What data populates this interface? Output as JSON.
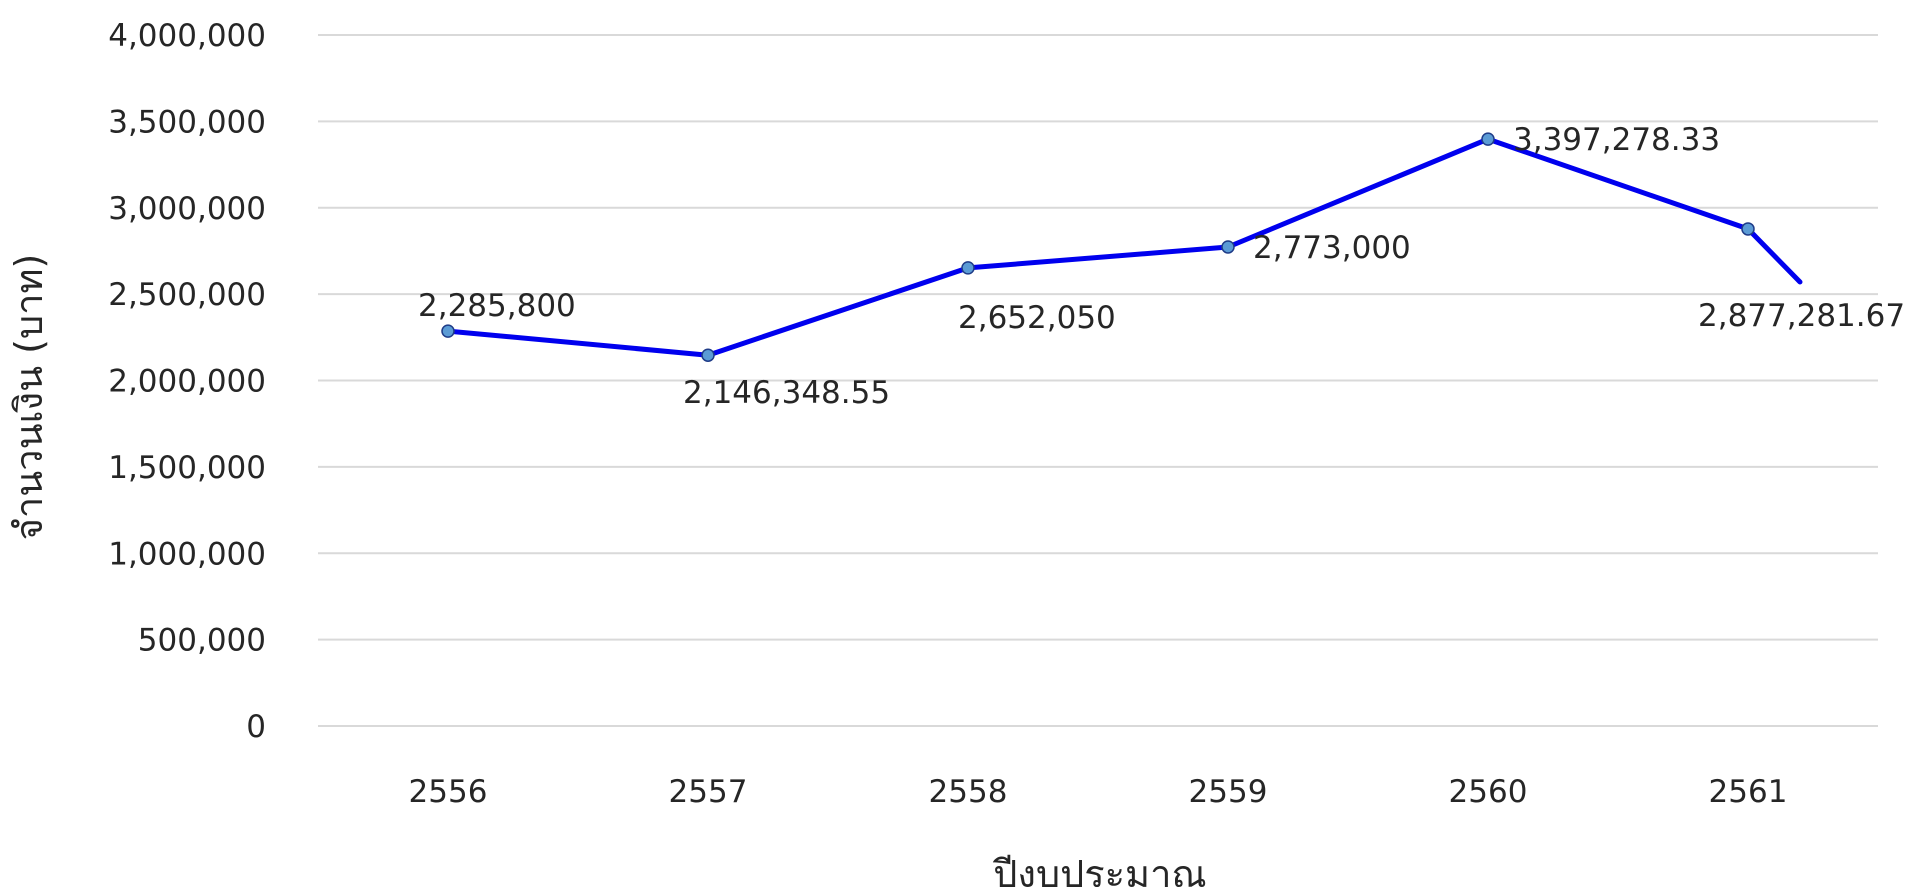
{
  "chart_data": {
    "type": "line",
    "title": "",
    "xlabel": "ปีงบประมาณ",
    "ylabel": "จำนวนเงิน (บาท)",
    "categories": [
      "2556",
      "2557",
      "2558",
      "2559",
      "2560",
      "2561"
    ],
    "series": [
      {
        "values": [
          2285800,
          2146348.55,
          2652050,
          2773000,
          3397278.33,
          2877281.67
        ],
        "data_labels": [
          "2,285,800",
          "2,146,348.55",
          "2,652,050",
          "2,773,000",
          "3,397,278.33",
          "2,877,281.67"
        ],
        "color": "#0000ee",
        "marker_color": "#5b9bd5"
      }
    ],
    "trailing_segment_end_value": 2570000,
    "ylim": [
      0,
      4000000
    ],
    "ytick_values": [
      0,
      500000,
      1000000,
      1500000,
      2000000,
      2500000,
      3000000,
      3500000,
      4000000
    ],
    "ytick_labels": [
      "0",
      "500,000",
      "1,000,000",
      "1,500,000",
      "2,000,000",
      "2,500,000",
      "3,000,000",
      "3,500,000",
      "4,000,000"
    ],
    "grid": true,
    "legend": "none",
    "gridline_color": "#d9d9d9",
    "text_color": "#262626"
  }
}
